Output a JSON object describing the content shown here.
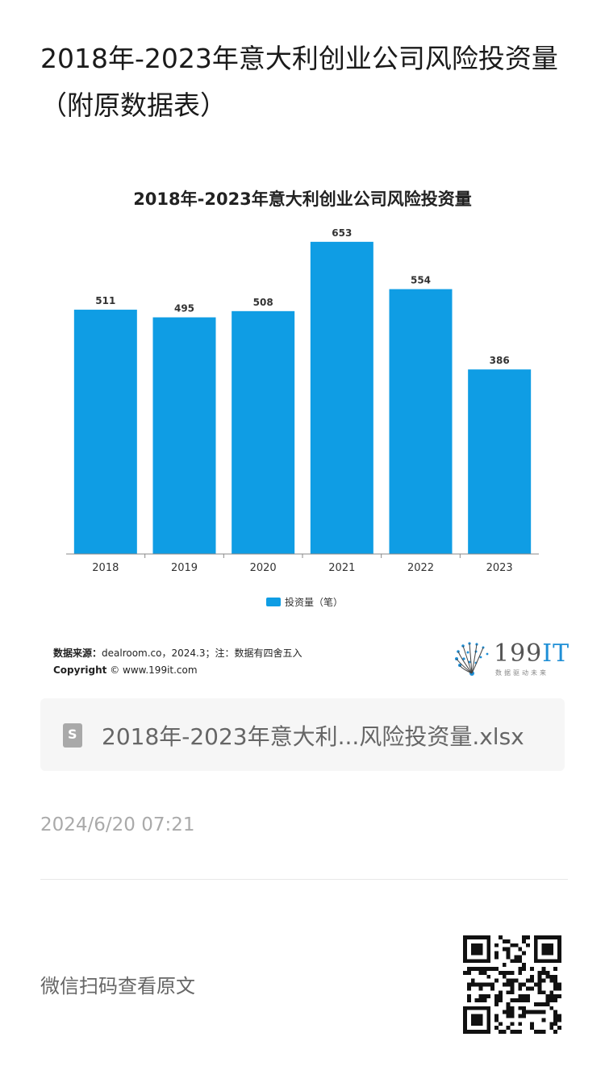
{
  "page": {
    "title": "2018年-2023年意大利创业公司风险投资量（附原数据表）"
  },
  "chart_data": {
    "type": "bar",
    "title": "2018年-2023年意大利创业公司风险投资量",
    "categories": [
      "2018",
      "2019",
      "2020",
      "2021",
      "2022",
      "2023"
    ],
    "series": [
      {
        "name": "投资量（笔）",
        "values": [
          511,
          495,
          508,
          653,
          554,
          386
        ],
        "color": "#0f9de4"
      }
    ],
    "ylim": [
      0,
      700
    ],
    "grid": false,
    "legend_position": "bottom",
    "data_labels": true
  },
  "source": {
    "label": "数据来源：",
    "text": "dealroom.co，2024.3；注：数据有四舍五入",
    "copyright_label": "Copyright",
    "copyright_text": "© www.199it.com"
  },
  "logo": {
    "main": "199",
    "accent": "IT",
    "sub": "数据驱动未来"
  },
  "file": {
    "name": "2018年-2023年意大利...风险投资量.xlsx",
    "icon": "S"
  },
  "meta": {
    "timestamp": "2024/6/20 07:21",
    "scan_text": "微信扫码查看原文"
  }
}
